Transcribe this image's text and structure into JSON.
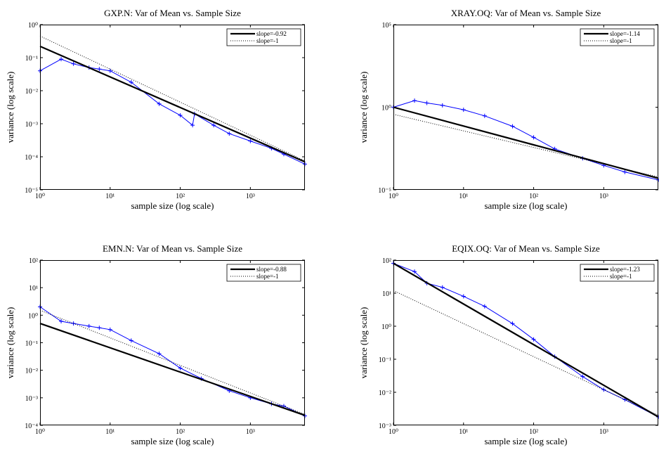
{
  "chart_data": [
    {
      "type": "line",
      "title": "GXP.N: Var of Mean vs. Sample Size",
      "xlabel": "sample size (log scale)",
      "ylabel": "variance (log scale)",
      "xscale": "log",
      "yscale": "log",
      "xlim": [
        1,
        6000
      ],
      "ylim": [
        1e-05,
        1
      ],
      "grid": false,
      "legend": "upper right",
      "xticks": [
        {
          "value": 1,
          "label": "10⁰"
        },
        {
          "value": 10,
          "label": "10¹"
        },
        {
          "value": 100,
          "label": "10²"
        },
        {
          "value": 1000,
          "label": "10³"
        }
      ],
      "yticks": [
        {
          "value": 1e-05,
          "label": "10⁻⁵"
        },
        {
          "value": 0.0001,
          "label": "10⁻⁴"
        },
        {
          "value": 0.001,
          "label": "10⁻³"
        },
        {
          "value": 0.01,
          "label": "10⁻²"
        },
        {
          "value": 0.1,
          "label": "10⁻¹"
        },
        {
          "value": 1,
          "label": "10⁰"
        }
      ],
      "series": [
        {
          "color": "#0000ff",
          "style": "solid",
          "marker": "+",
          "x": [
            1,
            2,
            3,
            5,
            7,
            10,
            20,
            50,
            100,
            150,
            160,
            300,
            500,
            1000,
            2000,
            3000,
            6000
          ],
          "values": [
            0.04,
            0.09,
            0.065,
            0.05,
            0.045,
            0.04,
            0.018,
            0.004,
            0.0018,
            0.0009,
            0.002,
            0.0009,
            0.0005,
            0.0003,
            0.00018,
            0.00012,
            6e-05
          ]
        },
        {
          "name": "slope=-0.92",
          "color": "#000000",
          "style": "solid",
          "x": [
            1,
            6000
          ],
          "values": [
            0.22,
            7e-05
          ]
        },
        {
          "name": "slope=-1",
          "color": "#000000",
          "style": "dotted",
          "x": [
            1,
            6000
          ],
          "values": [
            0.45,
            7.5e-05
          ]
        }
      ]
    },
    {
      "type": "line",
      "title": "XRAY.OQ: Var of Mean vs. Sample Size",
      "xlabel": "sample size (log scale)",
      "ylabel": "variance (log scale)",
      "xscale": "log",
      "yscale": "log",
      "xlim": [
        1,
        6000
      ],
      "ylim": [
        1e-05,
        100000
      ],
      "grid": false,
      "legend": "upper right",
      "xticks": [
        {
          "value": 1,
          "label": "10⁰"
        },
        {
          "value": 10,
          "label": "10¹"
        },
        {
          "value": 100,
          "label": "10²"
        },
        {
          "value": 1000,
          "label": "10³"
        }
      ],
      "yticks": [
        {
          "value": 1e-05,
          "label": "10⁻⁵"
        },
        {
          "value": 1,
          "label": "10⁰"
        },
        {
          "value": 100000,
          "label": "10⁵"
        }
      ],
      "series": [
        {
          "color": "#0000ff",
          "style": "solid",
          "marker": "+",
          "x": [
            1,
            2,
            3,
            5,
            10,
            20,
            50,
            100,
            200,
            500,
            1000,
            2000,
            6000
          ],
          "values": [
            1,
            2.5,
            1.8,
            1.3,
            0.7,
            0.3,
            0.07,
            0.015,
            0.003,
            0.0008,
            0.0003,
            0.00012,
            4e-05
          ]
        },
        {
          "name": "slope=-1.14",
          "color": "#000000",
          "style": "solid",
          "x": [
            1,
            6000
          ],
          "values": [
            1,
            5e-05
          ]
        },
        {
          "name": "slope=-1",
          "color": "#000000",
          "style": "dotted",
          "x": [
            1,
            6000
          ],
          "values": [
            0.37,
            6e-05
          ]
        }
      ]
    },
    {
      "type": "line",
      "title": "EMN.N: Var of Mean vs. Sample Size",
      "xlabel": "sample size (log scale)",
      "ylabel": "variance (log scale)",
      "xscale": "log",
      "yscale": "log",
      "xlim": [
        1,
        6000
      ],
      "ylim": [
        0.0001,
        100
      ],
      "grid": false,
      "legend": "upper right",
      "xticks": [
        {
          "value": 1,
          "label": "10⁰"
        },
        {
          "value": 10,
          "label": "10¹"
        },
        {
          "value": 100,
          "label": "10²"
        },
        {
          "value": 1000,
          "label": "10³"
        }
      ],
      "yticks": [
        {
          "value": 0.0001,
          "label": "10⁻⁴"
        },
        {
          "value": 0.001,
          "label": "10⁻³"
        },
        {
          "value": 0.01,
          "label": "10⁻²"
        },
        {
          "value": 0.1,
          "label": "10⁻¹"
        },
        {
          "value": 1,
          "label": "10⁰"
        },
        {
          "value": 10,
          "label": "10¹"
        },
        {
          "value": 100,
          "label": "10²"
        }
      ],
      "series": [
        {
          "color": "#0000ff",
          "style": "solid",
          "marker": "+",
          "x": [
            1,
            2,
            3,
            5,
            7,
            10,
            20,
            50,
            100,
            200,
            500,
            1000,
            2000,
            3000,
            6000
          ],
          "values": [
            2,
            0.6,
            0.5,
            0.4,
            0.35,
            0.3,
            0.12,
            0.04,
            0.012,
            0.005,
            0.0018,
            0.001,
            0.0006,
            0.0005,
            0.00022
          ]
        },
        {
          "name": "slope=-0.88",
          "color": "#000000",
          "style": "solid",
          "x": [
            1,
            6000
          ],
          "values": [
            0.5,
            0.00023
          ]
        },
        {
          "name": "slope=-1",
          "color": "#000000",
          "style": "dotted",
          "x": [
            1,
            6000
          ],
          "values": [
            1.5,
            0.00025
          ]
        }
      ]
    },
    {
      "type": "line",
      "title": "EQIX.OQ: Var of Mean vs. Sample Size",
      "xlabel": "sample size (log scale)",
      "ylabel": "variance (log scale)",
      "xscale": "log",
      "yscale": "log",
      "xlim": [
        1,
        6000
      ],
      "ylim": [
        0.001,
        100
      ],
      "grid": false,
      "legend": "upper right",
      "xticks": [
        {
          "value": 1,
          "label": "10⁰"
        },
        {
          "value": 10,
          "label": "10¹"
        },
        {
          "value": 100,
          "label": "10²"
        },
        {
          "value": 1000,
          "label": "10³"
        }
      ],
      "yticks": [
        {
          "value": 0.001,
          "label": "10⁻³"
        },
        {
          "value": 0.01,
          "label": "10⁻²"
        },
        {
          "value": 0.1,
          "label": "10⁻¹"
        },
        {
          "value": 1,
          "label": "10⁰"
        },
        {
          "value": 10,
          "label": "10¹"
        },
        {
          "value": 100,
          "label": "10²"
        }
      ],
      "series": [
        {
          "color": "#0000ff",
          "style": "solid",
          "marker": "+",
          "x": [
            1,
            2,
            3,
            5,
            10,
            20,
            50,
            100,
            200,
            500,
            1000,
            2000,
            6000
          ],
          "values": [
            80,
            45,
            20,
            15,
            8,
            4,
            1.2,
            0.4,
            0.12,
            0.03,
            0.012,
            0.006,
            0.0018
          ]
        },
        {
          "name": "slope=-1.23",
          "color": "#000000",
          "style": "solid",
          "x": [
            1,
            6000
          ],
          "values": [
            80,
            0.0018
          ]
        },
        {
          "name": "slope=-1",
          "color": "#000000",
          "style": "dotted",
          "x": [
            1,
            6000
          ],
          "values": [
            12,
            0.002
          ]
        }
      ]
    }
  ]
}
